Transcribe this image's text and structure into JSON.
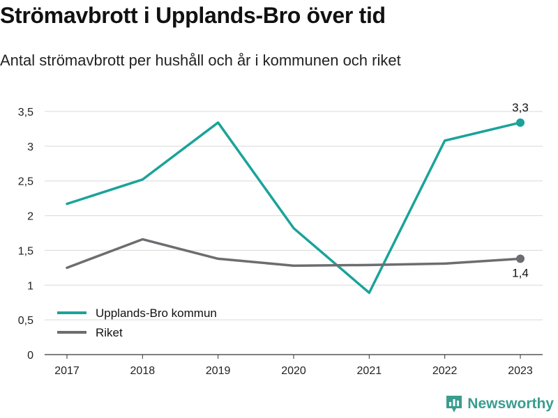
{
  "chart_data": {
    "type": "line",
    "title": "Strömavbrott i Upplands-Bro över tid",
    "subtitle": "Antal strömavbrott per hushåll och år i kommunen och riket",
    "x": [
      "2017",
      "2018",
      "2019",
      "2020",
      "2021",
      "2022",
      "2023"
    ],
    "ylim": [
      0,
      3.5
    ],
    "yticks": [
      0,
      0.5,
      1,
      1.5,
      2,
      2.5,
      3,
      3.5
    ],
    "ytick_labels": [
      "0",
      "0,5",
      "1",
      "1,5",
      "2",
      "2,5",
      "3",
      "3,5"
    ],
    "grid": true,
    "legend_position": "bottom-left",
    "series": [
      {
        "name": "Upplands-Bro kommun",
        "color": "#1aa39a",
        "values": [
          2.17,
          2.52,
          3.34,
          1.82,
          0.89,
          3.08,
          3.34
        ],
        "end_label": "3,3"
      },
      {
        "name": "Riket",
        "color": "#6e6c70",
        "values": [
          1.25,
          1.66,
          1.38,
          1.28,
          1.29,
          1.31,
          1.38
        ],
        "end_label": "1,4"
      }
    ]
  },
  "brand": {
    "name": "Newsworthy",
    "icon": "newsworthy-logo-icon",
    "color": "#3a9d8f"
  }
}
